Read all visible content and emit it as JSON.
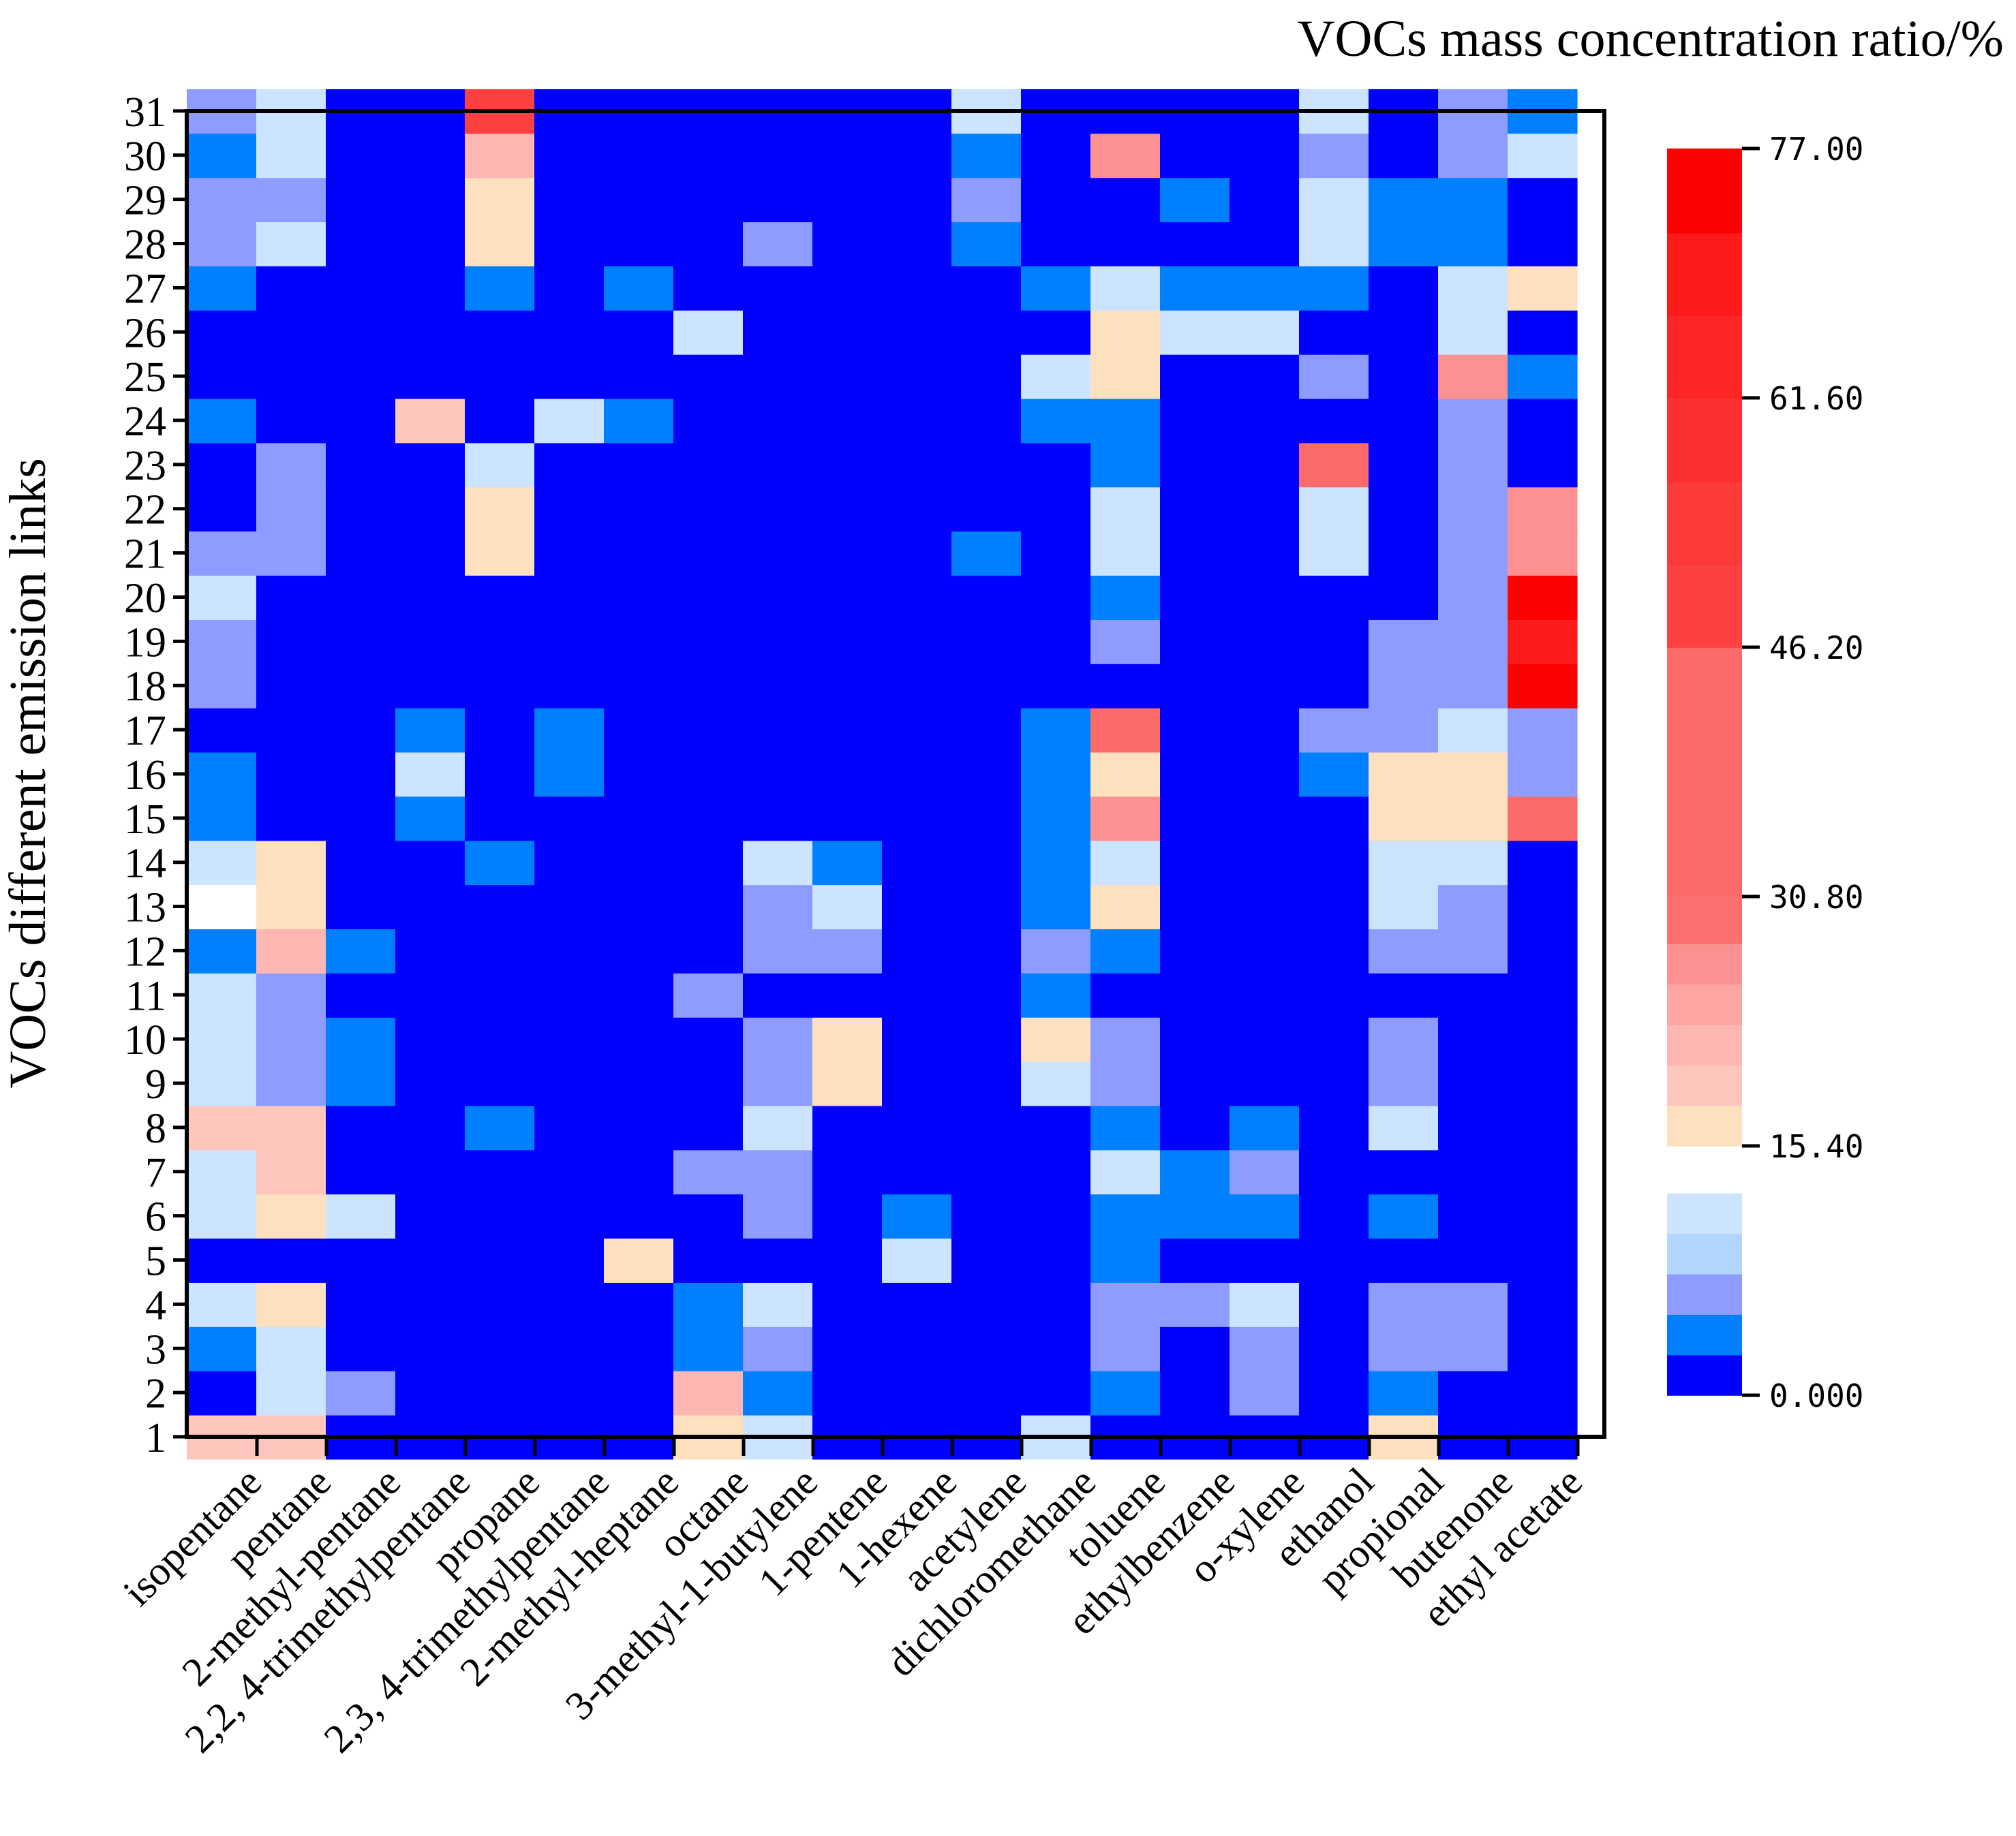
{
  "chart_data": {
    "type": "heatmap",
    "title": "VOCs mass concentration ratio/%",
    "xlabel": "",
    "ylabel": "VOCs different emission links",
    "x_categories": [
      "isopentane",
      "pentane",
      "2-methyl-pentane",
      "2,2, 4-trimethylpentane",
      "propane",
      "2,3, 4-trimethylpentane",
      "2-methyl-heptane",
      "octane",
      "3-methyl-1-butylene",
      "1-pentene",
      "1-hexene",
      "acetylene",
      "dichloromethane",
      "toluene",
      "ethylbenzene",
      "o-xylene",
      "ethanol",
      "propional",
      "butenone",
      "ethyl acetate"
    ],
    "y_categories": [
      "1",
      "2",
      "3",
      "4",
      "5",
      "6",
      "7",
      "8",
      "9",
      "10",
      "11",
      "12",
      "13",
      "14",
      "15",
      "16",
      "17",
      "18",
      "19",
      "20",
      "21",
      "22",
      "23",
      "24",
      "25",
      "26",
      "27",
      "28",
      "29",
      "30",
      "31"
    ],
    "colorbar": {
      "ticks": [
        "0.000",
        "15.40",
        "30.80",
        "46.20",
        "61.60",
        "77.00"
      ],
      "range": [
        0,
        77
      ],
      "bins": [
        0,
        2.5,
        5,
        7.5,
        10,
        12.5,
        15.4,
        17.9,
        20.4,
        22.9,
        25.4,
        27.9,
        30.8,
        46.2,
        51.3,
        56.4,
        61.6,
        66.7,
        71.8,
        77
      ],
      "colors": [
        "#0000ff",
        "#0080ff",
        "#8f9cff",
        "#b3d6ff",
        "#cce4ff",
        "#ffffff",
        "#fde0bd",
        "#fdc7be",
        "#fdb6b1",
        "#fda5a2",
        "#fd9090",
        "#fd7070",
        "#fd6a6a",
        "#fd4040",
        "#fd3a3a",
        "#fd3030",
        "#fd2525",
        "#fd1a1a",
        "#fd0000"
      ]
    },
    "values": [
      [
        20,
        2,
        3,
        12,
        1,
        12,
        11,
        20,
        10,
        11,
        10,
        3,
        13,
        11,
        3,
        3,
        0,
        5,
        5,
        11,
        6,
        1,
        1,
        3,
        0,
        0,
        3,
        6,
        6,
        3,
        6
      ],
      [
        18,
        11,
        11,
        15.4,
        0,
        15.4,
        19,
        20,
        6,
        6,
        6,
        22,
        15.4,
        15.4,
        0,
        0,
        0,
        0,
        0,
        0,
        6,
        6,
        6,
        0,
        0,
        0,
        0,
        10,
        6,
        10,
        10
      ],
      [
        0,
        6,
        0,
        0,
        0,
        11,
        0,
        0,
        3,
        3,
        0,
        3,
        0,
        0,
        2,
        0,
        0,
        0,
        0,
        0,
        0,
        0,
        0,
        0,
        0,
        0,
        0,
        0,
        0,
        0,
        0
      ],
      [
        0,
        0,
        0,
        0,
        0,
        0,
        0,
        0,
        0,
        0,
        0,
        0,
        0,
        0,
        3,
        10,
        3,
        0,
        0,
        0,
        0,
        0,
        0,
        20,
        0,
        0,
        0,
        0,
        0,
        0,
        0
      ],
      [
        0,
        0,
        0,
        0,
        0,
        0,
        0,
        3,
        0,
        0,
        0,
        0,
        0,
        3,
        0,
        0,
        0,
        0,
        0,
        0,
        17,
        15.4,
        10,
        0,
        0,
        0,
        3,
        17,
        17,
        22,
        49
      ],
      [
        0,
        0,
        0,
        0,
        0,
        0,
        0,
        0,
        0,
        0,
        0,
        0,
        0,
        0,
        0,
        3,
        3,
        0,
        0,
        0,
        0,
        0,
        0,
        11,
        0,
        0,
        0,
        0,
        0,
        0,
        0
      ],
      [
        0,
        0,
        0,
        0,
        15.4,
        0,
        0,
        0,
        0,
        0,
        0,
        0,
        0,
        0,
        0,
        0,
        0,
        0,
        0,
        0,
        0,
        0,
        0,
        3,
        0,
        0,
        3,
        0,
        0,
        0,
        0
      ],
      [
        17,
        22,
        3,
        3,
        0,
        0,
        6,
        0,
        0,
        0,
        6,
        0,
        0,
        0,
        0,
        0,
        0,
        0,
        0,
        0,
        0,
        0,
        0,
        0,
        0,
        11,
        0,
        0,
        0,
        0,
        0
      ],
      [
        11,
        3,
        6,
        10,
        0,
        6,
        6,
        12,
        6,
        6,
        0,
        6,
        6,
        12,
        0,
        0,
        0,
        0,
        0,
        0,
        0,
        0,
        0,
        0,
        0,
        0,
        0,
        6,
        0,
        0,
        0
      ],
      [
        0,
        0,
        0,
        0,
        0,
        0,
        0,
        0,
        17,
        17,
        0,
        6,
        10,
        3,
        0,
        0,
        0,
        0,
        0,
        0,
        0,
        0,
        0,
        0,
        0,
        0,
        0,
        0,
        0,
        0,
        0
      ],
      [
        0,
        0,
        0,
        0,
        10,
        3,
        0,
        0,
        0,
        0,
        0,
        0,
        0,
        0,
        0,
        0,
        0,
        0,
        0,
        0,
        0,
        0,
        0,
        0,
        0,
        0,
        0,
        0,
        0,
        0,
        0
      ],
      [
        0,
        0,
        0,
        0,
        0,
        0,
        0,
        0,
        0,
        0,
        0,
        0,
        0,
        0,
        0,
        0,
        0,
        0,
        0,
        0,
        3,
        0,
        0,
        0,
        0,
        0,
        0,
        3,
        6,
        3,
        12
      ],
      [
        11,
        0,
        0,
        0,
        0,
        0,
        0,
        0,
        11,
        17,
        3,
        6,
        3,
        3,
        3,
        3,
        3,
        0,
        0,
        0,
        0,
        0,
        0,
        3,
        12,
        0,
        3,
        0,
        0,
        0,
        0
      ],
      [
        0,
        3,
        6,
        6,
        3,
        3,
        11,
        3,
        6,
        6,
        0,
        3,
        15.4,
        11,
        27,
        17,
        44,
        0,
        6,
        3,
        11,
        11,
        3,
        3,
        17,
        17,
        11,
        0,
        0,
        26,
        0
      ],
      [
        0,
        0,
        0,
        6,
        0,
        3,
        3,
        0,
        0,
        0,
        0,
        0,
        0,
        0,
        0,
        0,
        0,
        0,
        0,
        0,
        0,
        0,
        0,
        0,
        0,
        12,
        3,
        0,
        3,
        0,
        0
      ],
      [
        0,
        6,
        6,
        11,
        0,
        3,
        6,
        3,
        0,
        0,
        0,
        0,
        0,
        0,
        0,
        0,
        0,
        0,
        0,
        0,
        0,
        0,
        0,
        0,
        0,
        11,
        3,
        0,
        0,
        0,
        0
      ],
      [
        0,
        0,
        0,
        0,
        0,
        0,
        0,
        0,
        0,
        0,
        0,
        0,
        0,
        0,
        0,
        3,
        6,
        0,
        0,
        0,
        12,
        10,
        44,
        0,
        6,
        0,
        3,
        10,
        10,
        6,
        10
      ],
      [
        15.4,
        3,
        6,
        6,
        0,
        3,
        0,
        10,
        6,
        6,
        0,
        6,
        10,
        11,
        15.4,
        15.4,
        6,
        6,
        6,
        0,
        0,
        0,
        0,
        0,
        0,
        0,
        0,
        3,
        3,
        0,
        0
      ],
      [
        0,
        0,
        6,
        6,
        0,
        0,
        0,
        0,
        0,
        0,
        0,
        6,
        6,
        10,
        15.4,
        15.4,
        10,
        6,
        6,
        6,
        6,
        6,
        6,
        6,
        26,
        10,
        10,
        3,
        3,
        6,
        6
      ],
      [
        0,
        0,
        0,
        0,
        0,
        0,
        0,
        0,
        0,
        0,
        0,
        0,
        0,
        0,
        44,
        6,
        6,
        74,
        70,
        77,
        26,
        26,
        0,
        0,
        3,
        0,
        17,
        0,
        0,
        10,
        3
      ]
    ]
  }
}
